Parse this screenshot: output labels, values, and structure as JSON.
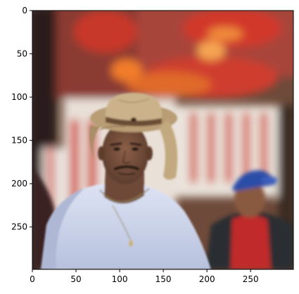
{
  "image": {
    "subject": "person-in-straw-cowboy-hat",
    "colors": {
      "frame": "#000000",
      "shirt": "#c9d2ea",
      "hat": "#bfa680",
      "skin": "#7a5440",
      "background_red": "#c0392b",
      "background_orange": "#f07d24"
    }
  },
  "axes": {
    "x_ticks": [
      {
        "value": 0,
        "label": "0"
      },
      {
        "value": 50,
        "label": "50"
      },
      {
        "value": 100,
        "label": "100"
      },
      {
        "value": 150,
        "label": "150"
      },
      {
        "value": 200,
        "label": "200"
      },
      {
        "value": 250,
        "label": "250"
      }
    ],
    "y_ticks": [
      {
        "value": 0,
        "label": "0"
      },
      {
        "value": 50,
        "label": "50"
      },
      {
        "value": 100,
        "label": "100"
      },
      {
        "value": 150,
        "label": "150"
      },
      {
        "value": 200,
        "label": "200"
      },
      {
        "value": 250,
        "label": "250"
      }
    ],
    "xlim": [
      0,
      299
    ],
    "ylim": [
      299,
      0
    ]
  }
}
